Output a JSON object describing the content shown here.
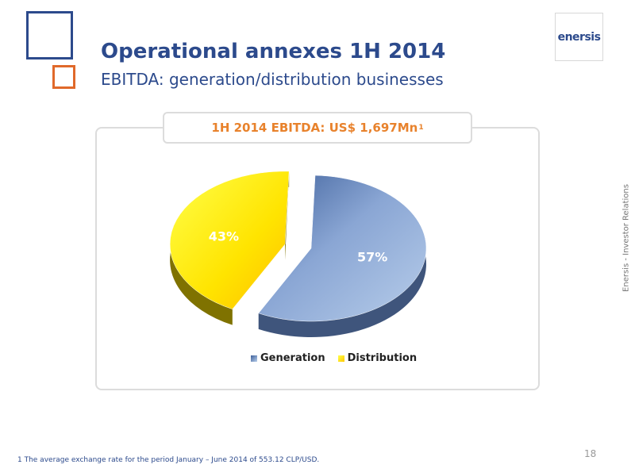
{
  "slide": {
    "title": "Operational annexes 1H 2014",
    "subtitle": "EBITDA: generation/distribution businesses",
    "brand": "enersis",
    "side_label": "Enersis - Investor Relations",
    "footnote": "1 The average exchange rate for the period January – June 2014 of  553.12 CLP/USD.",
    "page_number": "18"
  },
  "panel": {
    "header": "1H 2014 EBITDA: US$ 1,697Mn",
    "header_sup": "1"
  },
  "colors": {
    "primary_blue": "#2c4a8c",
    "accent_orange": "#e8822c",
    "generation": "#7f9fcf",
    "distribution": "#ffe400"
  },
  "chart_data": {
    "type": "pie",
    "title": "1H 2014 EBITDA: US$ 1,697Mn",
    "slices": [
      {
        "name": "Generation",
        "value": 57,
        "label": "57%",
        "color": "#7f9fcf"
      },
      {
        "name": "Distribution",
        "value": 43,
        "label": "43%",
        "color": "#ffe400"
      }
    ],
    "legend_position": "bottom",
    "exploded": "Distribution"
  }
}
